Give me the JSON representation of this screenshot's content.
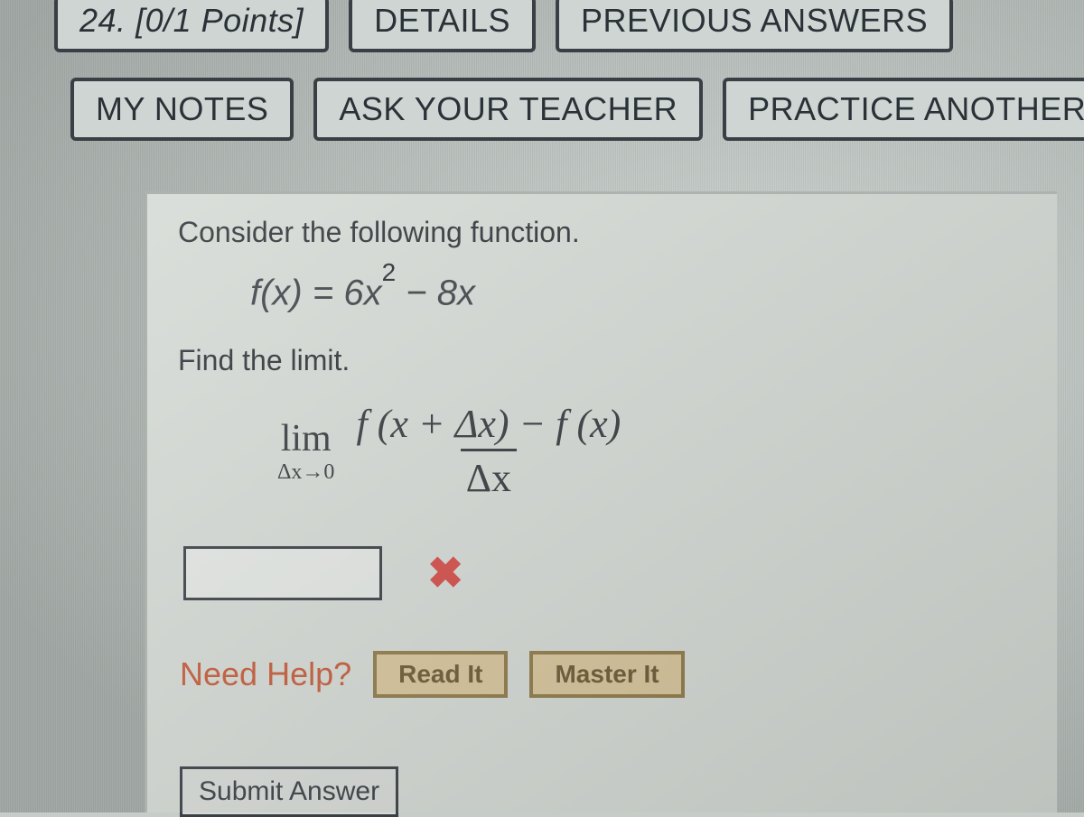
{
  "colors": {
    "page_bg": "#c5cdc9",
    "content_bg": "#d4d9d4",
    "button_bg": "#cfd5d2",
    "button_border": "#3a3f45",
    "button_text": "#2a3238",
    "answer_border": "#3a3f45",
    "wrong_icon": "#d24b46",
    "need_help_text": "#c45a38",
    "help_btn_bg": "#d6c49a",
    "help_btn_border": "#8f7a4a",
    "help_btn_text": "#6b5a35"
  },
  "typography": {
    "ui_font": "Arial",
    "math_font": "Times New Roman",
    "button_fontsize_pt": 27,
    "body_fontsize_pt": 24,
    "math_fontsize_pt": 33
  },
  "header": {
    "question_number": "24.",
    "points_label": "[0/1 Points]",
    "buttons": {
      "details": "DETAILS",
      "previous_answers": "PREVIOUS ANSWERS",
      "my_notes": "MY NOTES",
      "ask_teacher": "ASK YOUR TEACHER",
      "practice_another": "PRACTICE ANOTHER"
    }
  },
  "question": {
    "prompt": "Consider the following function.",
    "function_label": "f(x) = 6x",
    "function_exponent": "2",
    "function_tail": " − 8x",
    "subprompt": "Find the limit.",
    "limit": {
      "word": "lim",
      "subscript": "Δx→0",
      "numerator": "f (x + Δx) − f (x)",
      "denominator": "Δx"
    },
    "answer_value": "",
    "answer_status": "incorrect"
  },
  "help": {
    "label": "Need Help?",
    "read_it": "Read It",
    "master_it": "Master It"
  },
  "submit": {
    "label": "Submit Answer"
  }
}
